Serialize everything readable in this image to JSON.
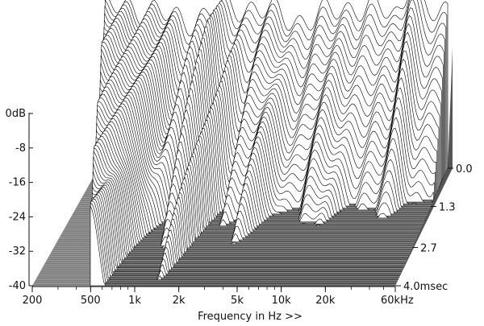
{
  "chart_data": {
    "type": "waterfall-3d",
    "title": "",
    "xlabel": "Frequency in Hz >>",
    "ylabel": "",
    "zlabel": "",
    "x_scale": "log",
    "x_range_hz": [
      200,
      60000
    ],
    "x_ticks": [
      {
        "value": 200,
        "label": "200"
      },
      {
        "value": 500,
        "label": "500"
      },
      {
        "value": 1000,
        "label": "1k"
      },
      {
        "value": 2000,
        "label": "2k"
      },
      {
        "value": 5000,
        "label": "5k"
      },
      {
        "value": 10000,
        "label": "10k"
      },
      {
        "value": 20000,
        "label": "20k"
      },
      {
        "value": 60000,
        "label": "60kHz"
      }
    ],
    "y_range_db": [
      -40,
      0
    ],
    "y_ticks": [
      {
        "value": 0,
        "label": "0dB"
      },
      {
        "value": -8,
        "label": "-8"
      },
      {
        "value": -16,
        "label": "-16"
      },
      {
        "value": -24,
        "label": "-24"
      },
      {
        "value": -32,
        "label": "-32"
      },
      {
        "value": -40,
        "label": "-40"
      }
    ],
    "t_range_msec": [
      0,
      4.0
    ],
    "t_ticks": [
      {
        "value": 0.0,
        "label": "0.0"
      },
      {
        "value": 1.3,
        "label": "1.3"
      },
      {
        "value": 2.7,
        "label": "2.7"
      },
      {
        "value": 4.0,
        "label": "4.0msec"
      }
    ],
    "slice_count": 60,
    "grid": false,
    "legend": "none",
    "colors": {
      "lines": "#000000",
      "fill": "#ffffff",
      "floor": "#7a7a7a",
      "floor_stripe": "#a8a8a8"
    }
  }
}
